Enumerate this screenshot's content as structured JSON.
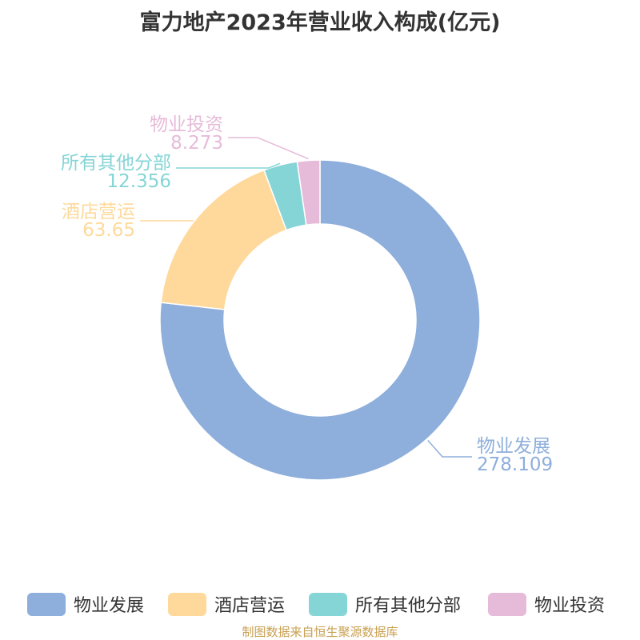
{
  "chart_data": {
    "type": "pie",
    "title": "富力地产2023年营业收入构成(亿元)",
    "slices": [
      {
        "name": "物业发展",
        "value": 278.109,
        "value_label": "278.109",
        "color": "#8eaedb"
      },
      {
        "name": "酒店营运",
        "value": 63.65,
        "value_label": "63.65",
        "color": "#fed99b"
      },
      {
        "name": "所有其他分部",
        "value": 12.356,
        "value_label": "12.356",
        "color": "#86d5d6"
      },
      {
        "name": "物业投资",
        "value": 8.273,
        "value_label": "8.273",
        "color": "#e6bbd9"
      }
    ],
    "legend_position": "bottom",
    "donut": true
  },
  "source_text": "制图数据来自恒生聚源数据库"
}
